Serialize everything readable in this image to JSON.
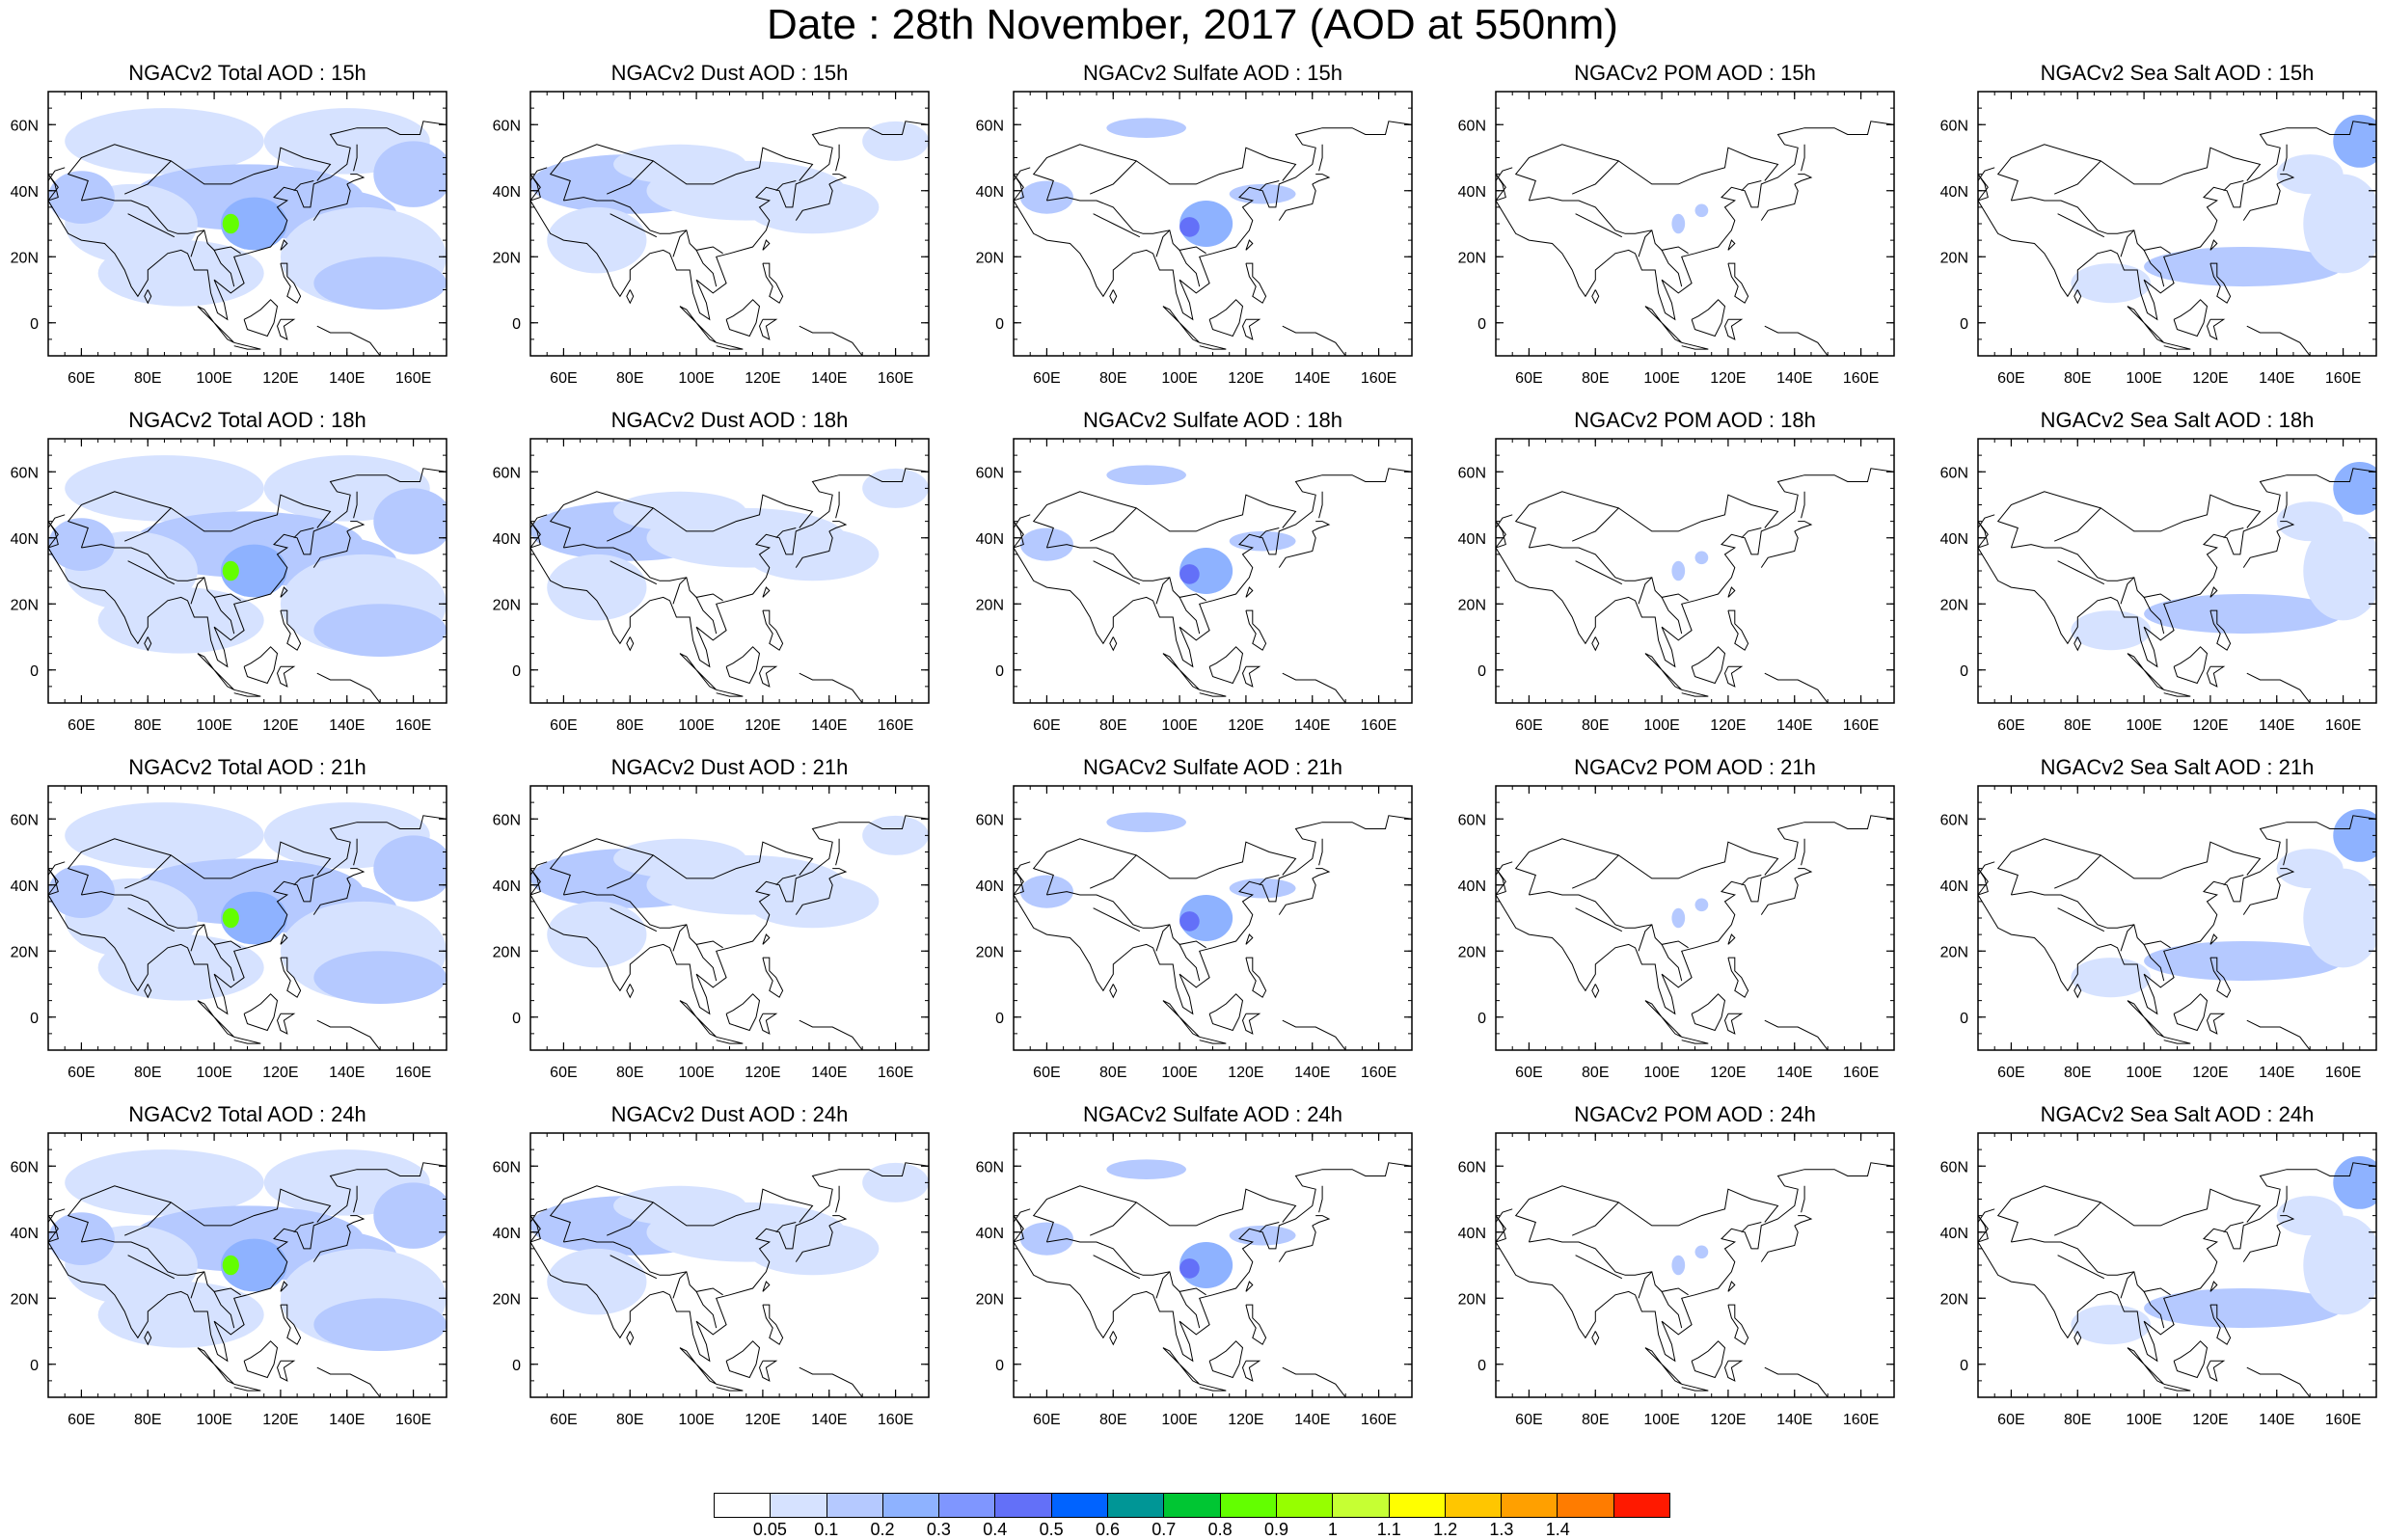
{
  "title": "Date : 28th November, 2017 (AOD at 550nm)",
  "axes": {
    "x_ticks": [
      "60E",
      "80E",
      "100E",
      "120E",
      "140E",
      "160E"
    ],
    "y_ticks": [
      "60N",
      "40N",
      "20N",
      "0"
    ]
  },
  "rows": [
    {
      "hour": "15h",
      "panels": [
        {
          "title": "NGACv2 Total AOD : 15h",
          "species": "total"
        },
        {
          "title": "NGACv2 Dust AOD : 15h",
          "species": "dust"
        },
        {
          "title": "NGACv2 Sulfate AOD : 15h",
          "species": "sulfate"
        },
        {
          "title": "NGACv2 POM AOD : 15h",
          "species": "pom"
        },
        {
          "title": "NGACv2 Sea Salt AOD : 15h",
          "species": "seasalt"
        }
      ]
    },
    {
      "hour": "18h",
      "panels": [
        {
          "title": "NGACv2 Total AOD : 18h",
          "species": "total"
        },
        {
          "title": "NGACv2 Dust AOD : 18h",
          "species": "dust"
        },
        {
          "title": "NGACv2 Sulfate AOD : 18h",
          "species": "sulfate"
        },
        {
          "title": "NGACv2 POM AOD : 18h",
          "species": "pom"
        },
        {
          "title": "NGACv2 Sea Salt AOD : 18h",
          "species": "seasalt"
        }
      ]
    },
    {
      "hour": "21h",
      "panels": [
        {
          "title": "NGACv2 Total AOD : 21h",
          "species": "total"
        },
        {
          "title": "NGACv2 Dust AOD : 21h",
          "species": "dust"
        },
        {
          "title": "NGACv2 Sulfate AOD : 21h",
          "species": "sulfate"
        },
        {
          "title": "NGACv2 POM AOD : 21h",
          "species": "pom"
        },
        {
          "title": "NGACv2 Sea Salt AOD : 21h",
          "species": "seasalt"
        }
      ]
    },
    {
      "hour": "24h",
      "panels": [
        {
          "title": "NGACv2 Total AOD : 24h",
          "species": "total"
        },
        {
          "title": "NGACv2 Dust AOD : 24h",
          "species": "dust"
        },
        {
          "title": "NGACv2 Sulfate AOD : 24h",
          "species": "sulfate"
        },
        {
          "title": "NGACv2 POM AOD : 24h",
          "species": "pom"
        },
        {
          "title": "NGACv2 Sea Salt  AOD : 24h",
          "species": "seasalt"
        }
      ]
    }
  ],
  "colorbar": {
    "labels": [
      "0.05",
      "0.1",
      "0.2",
      "0.3",
      "0.4",
      "0.5",
      "0.6",
      "0.7",
      "0.8",
      "0.9",
      "1",
      "1.1",
      "1.2",
      "1.3",
      "1.4"
    ],
    "colors": [
      "#ffffff",
      "#d6e2ff",
      "#b5c9ff",
      "#8eb2ff",
      "#7f96ff",
      "#6370f8",
      "#0063ff",
      "#009696",
      "#00c633",
      "#63ff00",
      "#96ff00",
      "#c6ff33",
      "#ffff00",
      "#ffc600",
      "#ffa000",
      "#ff7c00",
      "#ff1900"
    ]
  }
}
